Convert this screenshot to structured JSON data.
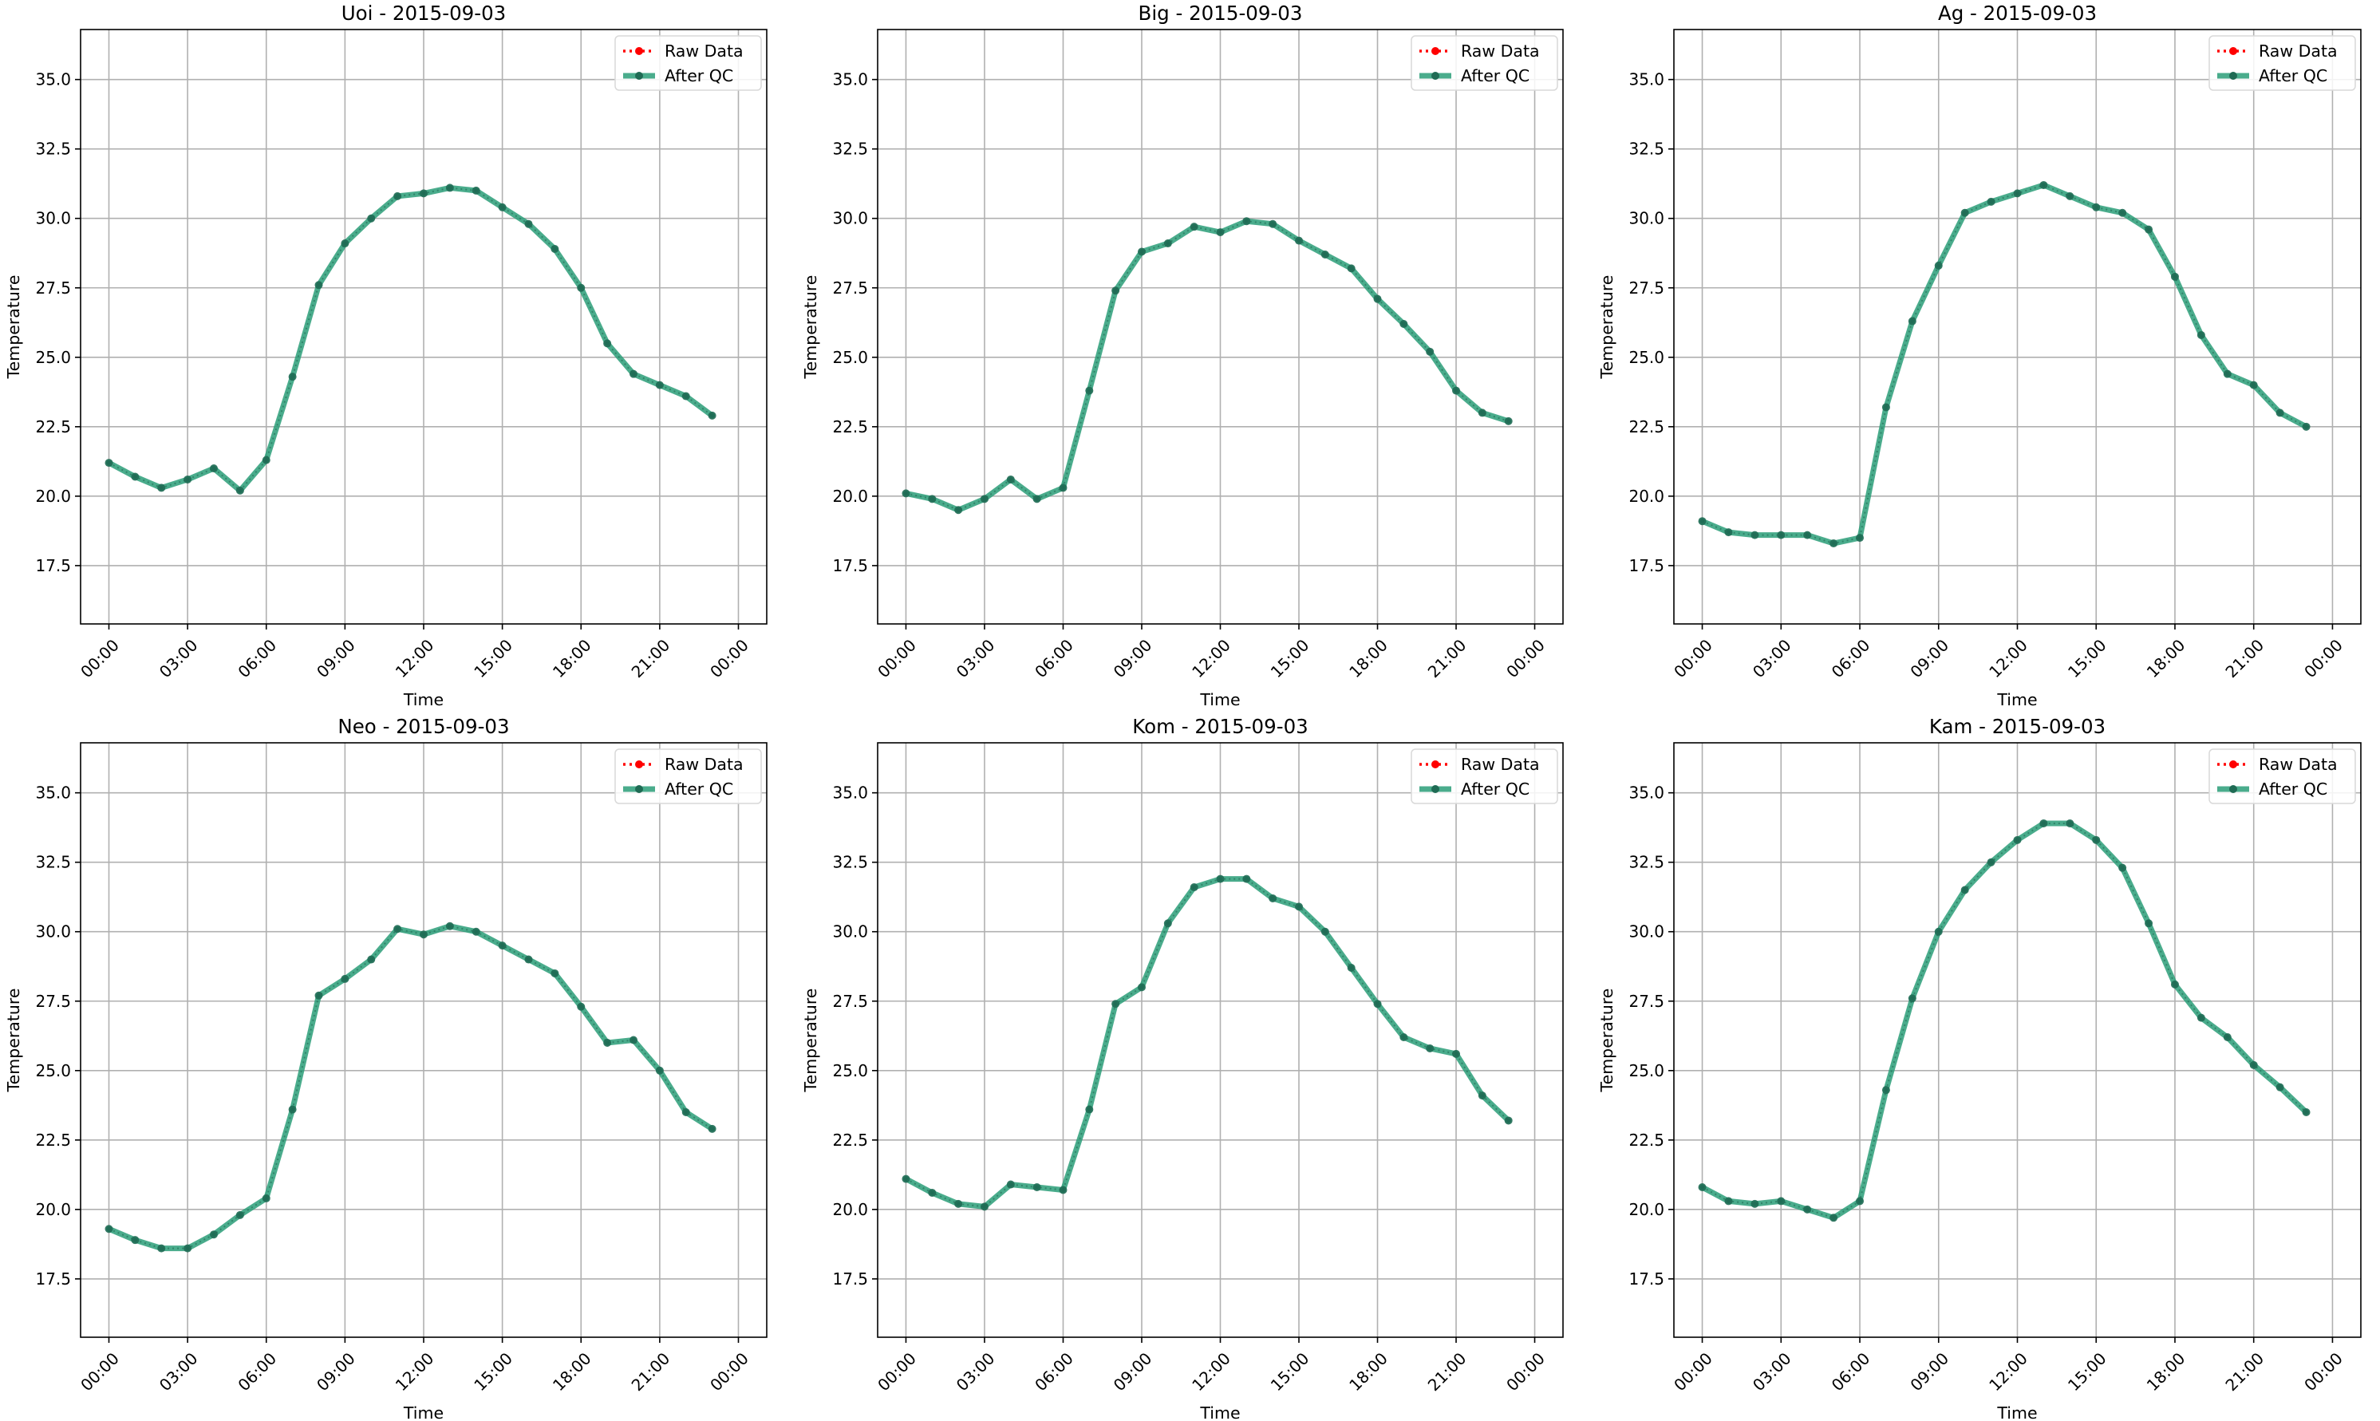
{
  "figure": {
    "background": "#ffffff"
  },
  "colors": {
    "raw": "#ff0000",
    "qc": "#2a9d78",
    "marker": "#1f6b54",
    "grid": "#b0b0b0",
    "axis": "#000000"
  },
  "chart_data": [
    {
      "type": "line",
      "title": "Uoi - 2015-09-03",
      "xlabel": "Time",
      "ylabel": "Temperature",
      "x_ticks": [
        "00:00",
        "03:00",
        "06:00",
        "09:00",
        "12:00",
        "15:00",
        "18:00",
        "21:00",
        "00:00"
      ],
      "y_ticks": [
        "17.5",
        "20.0",
        "22.5",
        "25.0",
        "27.5",
        "30.0",
        "32.5",
        "35.0"
      ],
      "x": [
        "00:00",
        "01:00",
        "02:00",
        "03:00",
        "04:00",
        "05:00",
        "06:00",
        "07:00",
        "08:00",
        "09:00",
        "10:00",
        "11:00",
        "12:00",
        "13:00",
        "14:00",
        "15:00",
        "16:00",
        "17:00",
        "18:00",
        "19:00",
        "20:00",
        "21:00",
        "22:00",
        "23:00"
      ],
      "ylim": [
        15.4,
        36.8
      ],
      "grid": true,
      "legend_position": "upper right",
      "series": [
        {
          "name": "Raw Data",
          "values": [
            21.2,
            20.7,
            20.3,
            20.6,
            21.0,
            20.2,
            21.3,
            24.3,
            27.6,
            29.1,
            30.0,
            30.8,
            30.9,
            31.1,
            31.0,
            30.4,
            29.8,
            28.9,
            27.5,
            25.5,
            24.4,
            24.0,
            23.6,
            22.9
          ]
        },
        {
          "name": "After QC",
          "values": [
            21.2,
            20.7,
            20.3,
            20.6,
            21.0,
            20.2,
            21.3,
            24.3,
            27.6,
            29.1,
            30.0,
            30.8,
            30.9,
            31.1,
            31.0,
            30.4,
            29.8,
            28.9,
            27.5,
            25.5,
            24.4,
            24.0,
            23.6,
            22.9
          ]
        }
      ]
    },
    {
      "type": "line",
      "title": "Big - 2015-09-03",
      "xlabel": "Time",
      "ylabel": "Temperature",
      "x_ticks": [
        "00:00",
        "03:00",
        "06:00",
        "09:00",
        "12:00",
        "15:00",
        "18:00",
        "21:00",
        "00:00"
      ],
      "y_ticks": [
        "17.5",
        "20.0",
        "22.5",
        "25.0",
        "27.5",
        "30.0",
        "32.5",
        "35.0"
      ],
      "x": [
        "00:00",
        "01:00",
        "02:00",
        "03:00",
        "04:00",
        "05:00",
        "06:00",
        "07:00",
        "08:00",
        "09:00",
        "10:00",
        "11:00",
        "12:00",
        "13:00",
        "14:00",
        "15:00",
        "16:00",
        "17:00",
        "18:00",
        "19:00",
        "20:00",
        "21:00",
        "22:00",
        "23:00"
      ],
      "ylim": [
        15.4,
        36.8
      ],
      "grid": true,
      "legend_position": "upper right",
      "series": [
        {
          "name": "Raw Data",
          "values": [
            20.1,
            19.9,
            19.5,
            19.9,
            20.6,
            19.9,
            20.3,
            23.8,
            27.4,
            28.8,
            29.1,
            29.7,
            29.5,
            29.9,
            29.8,
            29.2,
            28.7,
            28.2,
            27.1,
            26.2,
            25.2,
            23.8,
            23.0,
            22.7
          ]
        },
        {
          "name": "After QC",
          "values": [
            20.1,
            19.9,
            19.5,
            19.9,
            20.6,
            19.9,
            20.3,
            23.8,
            27.4,
            28.8,
            29.1,
            29.7,
            29.5,
            29.9,
            29.8,
            29.2,
            28.7,
            28.2,
            27.1,
            26.2,
            25.2,
            23.8,
            23.0,
            22.7
          ]
        }
      ]
    },
    {
      "type": "line",
      "title": "Ag - 2015-09-03",
      "xlabel": "Time",
      "ylabel": "Temperature",
      "x_ticks": [
        "00:00",
        "03:00",
        "06:00",
        "09:00",
        "12:00",
        "15:00",
        "18:00",
        "21:00",
        "00:00"
      ],
      "y_ticks": [
        "17.5",
        "20.0",
        "22.5",
        "25.0",
        "27.5",
        "30.0",
        "32.5",
        "35.0"
      ],
      "x": [
        "00:00",
        "01:00",
        "02:00",
        "03:00",
        "04:00",
        "05:00",
        "06:00",
        "07:00",
        "08:00",
        "09:00",
        "10:00",
        "11:00",
        "12:00",
        "13:00",
        "14:00",
        "15:00",
        "16:00",
        "17:00",
        "18:00",
        "19:00",
        "20:00",
        "21:00",
        "22:00",
        "23:00"
      ],
      "ylim": [
        15.4,
        36.8
      ],
      "grid": true,
      "legend_position": "upper right",
      "series": [
        {
          "name": "Raw Data",
          "values": [
            19.1,
            18.7,
            18.6,
            18.6,
            18.6,
            18.3,
            18.5,
            23.2,
            26.3,
            28.3,
            30.2,
            30.6,
            30.9,
            31.2,
            30.8,
            30.4,
            30.2,
            29.6,
            27.9,
            25.8,
            24.4,
            24.0,
            23.0,
            22.5
          ]
        },
        {
          "name": "After QC",
          "values": [
            19.1,
            18.7,
            18.6,
            18.6,
            18.6,
            18.3,
            18.5,
            23.2,
            26.3,
            28.3,
            30.2,
            30.6,
            30.9,
            31.2,
            30.8,
            30.4,
            30.2,
            29.6,
            27.9,
            25.8,
            24.4,
            24.0,
            23.0,
            22.5
          ]
        }
      ]
    },
    {
      "type": "line",
      "title": "Neo - 2015-09-03",
      "xlabel": "Time",
      "ylabel": "Temperature",
      "x_ticks": [
        "00:00",
        "03:00",
        "06:00",
        "09:00",
        "12:00",
        "15:00",
        "18:00",
        "21:00",
        "00:00"
      ],
      "y_ticks": [
        "17.5",
        "20.0",
        "22.5",
        "25.0",
        "27.5",
        "30.0",
        "32.5",
        "35.0"
      ],
      "x": [
        "00:00",
        "01:00",
        "02:00",
        "03:00",
        "04:00",
        "05:00",
        "06:00",
        "07:00",
        "08:00",
        "09:00",
        "10:00",
        "11:00",
        "12:00",
        "13:00",
        "14:00",
        "15:00",
        "16:00",
        "17:00",
        "18:00",
        "19:00",
        "20:00",
        "21:00",
        "22:00",
        "23:00"
      ],
      "ylim": [
        15.4,
        36.8
      ],
      "grid": true,
      "legend_position": "upper right",
      "series": [
        {
          "name": "Raw Data",
          "values": [
            19.3,
            18.9,
            18.6,
            18.6,
            19.1,
            19.8,
            20.4,
            23.6,
            27.7,
            28.3,
            29.0,
            30.1,
            29.9,
            30.2,
            30.0,
            29.5,
            29.0,
            28.5,
            27.3,
            26.0,
            26.1,
            25.0,
            23.5,
            22.9
          ]
        },
        {
          "name": "After QC",
          "values": [
            19.3,
            18.9,
            18.6,
            18.6,
            19.1,
            19.8,
            20.4,
            23.6,
            27.7,
            28.3,
            29.0,
            30.1,
            29.9,
            30.2,
            30.0,
            29.5,
            29.0,
            28.5,
            27.3,
            26.0,
            26.1,
            25.0,
            23.5,
            22.9
          ]
        }
      ]
    },
    {
      "type": "line",
      "title": "Kom - 2015-09-03",
      "xlabel": "Time",
      "ylabel": "Temperature",
      "x_ticks": [
        "00:00",
        "03:00",
        "06:00",
        "09:00",
        "12:00",
        "15:00",
        "18:00",
        "21:00",
        "00:00"
      ],
      "y_ticks": [
        "17.5",
        "20.0",
        "22.5",
        "25.0",
        "27.5",
        "30.0",
        "32.5",
        "35.0"
      ],
      "x": [
        "00:00",
        "01:00",
        "02:00",
        "03:00",
        "04:00",
        "05:00",
        "06:00",
        "07:00",
        "08:00",
        "09:00",
        "10:00",
        "11:00",
        "12:00",
        "13:00",
        "14:00",
        "15:00",
        "16:00",
        "17:00",
        "18:00",
        "19:00",
        "20:00",
        "21:00",
        "22:00",
        "23:00"
      ],
      "ylim": [
        15.4,
        36.8
      ],
      "grid": true,
      "legend_position": "upper right",
      "series": [
        {
          "name": "Raw Data",
          "values": [
            21.1,
            20.6,
            20.2,
            20.1,
            20.9,
            20.8,
            20.7,
            23.6,
            27.4,
            28.0,
            30.3,
            31.6,
            31.9,
            31.9,
            31.2,
            30.9,
            30.0,
            28.7,
            27.4,
            26.2,
            25.8,
            25.6,
            24.1,
            23.2
          ]
        },
        {
          "name": "After QC",
          "values": [
            21.1,
            20.6,
            20.2,
            20.1,
            20.9,
            20.8,
            20.7,
            23.6,
            27.4,
            28.0,
            30.3,
            31.6,
            31.9,
            31.9,
            31.2,
            30.9,
            30.0,
            28.7,
            27.4,
            26.2,
            25.8,
            25.6,
            24.1,
            23.2
          ]
        }
      ]
    },
    {
      "type": "line",
      "title": "Kam - 2015-09-03",
      "xlabel": "Time",
      "ylabel": "Temperature",
      "x_ticks": [
        "00:00",
        "03:00",
        "06:00",
        "09:00",
        "12:00",
        "15:00",
        "18:00",
        "21:00",
        "00:00"
      ],
      "y_ticks": [
        "17.5",
        "20.0",
        "22.5",
        "25.0",
        "27.5",
        "30.0",
        "32.5",
        "35.0"
      ],
      "x": [
        "00:00",
        "01:00",
        "02:00",
        "03:00",
        "04:00",
        "05:00",
        "06:00",
        "07:00",
        "08:00",
        "09:00",
        "10:00",
        "11:00",
        "12:00",
        "13:00",
        "14:00",
        "15:00",
        "16:00",
        "17:00",
        "18:00",
        "19:00",
        "20:00",
        "21:00",
        "22:00",
        "23:00"
      ],
      "ylim": [
        15.4,
        36.8
      ],
      "grid": true,
      "legend_position": "upper right",
      "series": [
        {
          "name": "Raw Data",
          "values": [
            20.8,
            20.3,
            20.2,
            20.3,
            20.0,
            19.7,
            20.3,
            24.3,
            27.6,
            30.0,
            31.5,
            32.5,
            33.3,
            33.9,
            33.9,
            33.3,
            32.3,
            30.3,
            28.1,
            26.9,
            26.2,
            25.2,
            24.4,
            23.5
          ]
        },
        {
          "name": "After QC",
          "values": [
            20.8,
            20.3,
            20.2,
            20.3,
            20.0,
            19.7,
            20.3,
            24.3,
            27.6,
            30.0,
            31.5,
            32.5,
            33.3,
            33.9,
            33.9,
            33.3,
            32.3,
            30.3,
            28.1,
            26.9,
            26.2,
            25.2,
            24.4,
            23.5
          ]
        }
      ]
    }
  ]
}
